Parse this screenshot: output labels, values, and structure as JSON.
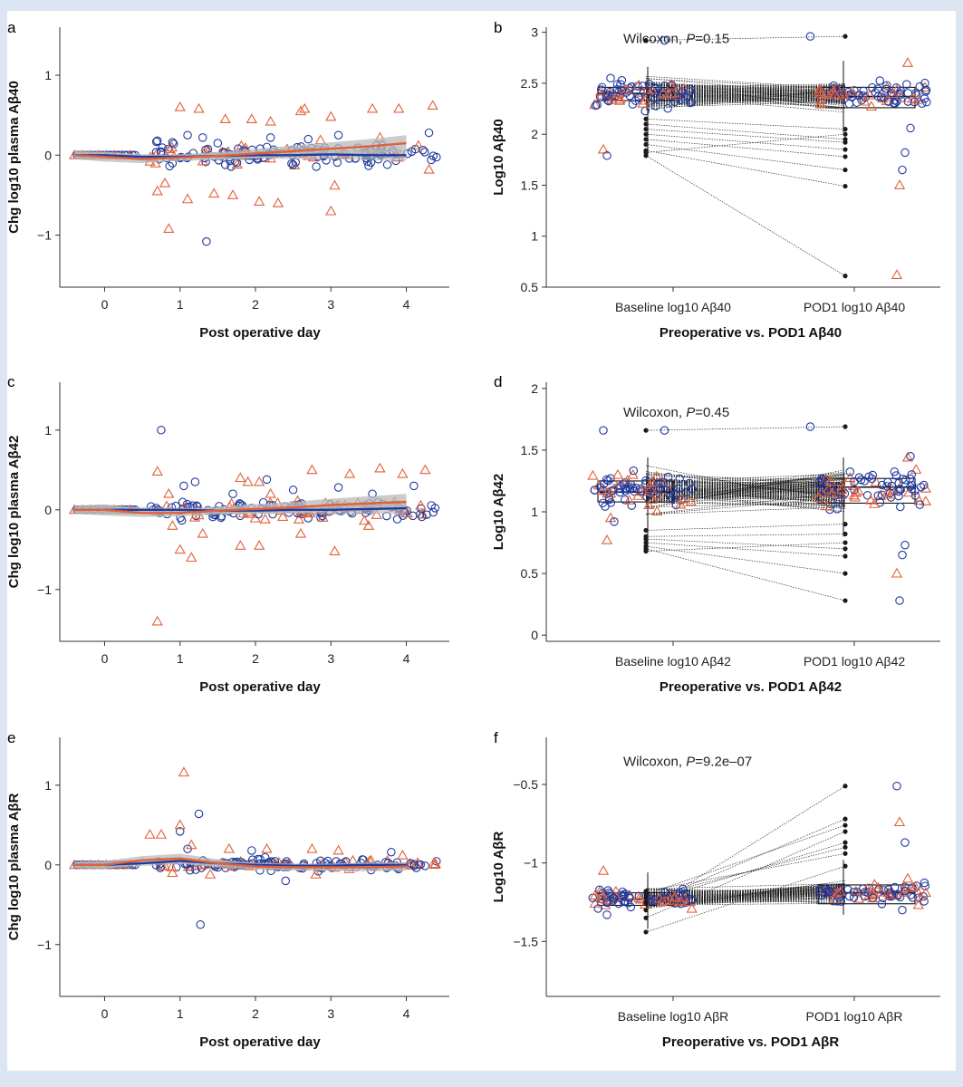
{
  "colors": {
    "orange": "#e0603a",
    "blue": "#1f3a9e",
    "smooth_band": "#b9b9b9",
    "black": "#1a1a1a"
  },
  "chart_data": [
    {
      "id": "a",
      "type": "scatter",
      "panel_label": "a",
      "xlabel": "Post operative day",
      "ylabel": "Chg log10 plasma Aβ40",
      "xlim": [
        -0.45,
        4.45
      ],
      "ylim": [
        -1.65,
        1.6
      ],
      "xticks": [
        0,
        1,
        2,
        3,
        4
      ],
      "yticks": [
        -1,
        0,
        1
      ],
      "smooth_orange": [
        [
          -0.4,
          0
        ],
        [
          0,
          -0.02
        ],
        [
          0.5,
          -0.05
        ],
        [
          1,
          -0.03
        ],
        [
          1.5,
          -0.01
        ],
        [
          2,
          0.02
        ],
        [
          2.5,
          0.05
        ],
        [
          3,
          0.08
        ],
        [
          3.5,
          0.11
        ],
        [
          4,
          0.15
        ]
      ],
      "smooth_blue": [
        [
          -0.4,
          0
        ],
        [
          0,
          0
        ],
        [
          0.5,
          -0.02
        ],
        [
          1,
          -0.02
        ],
        [
          1.5,
          -0.01
        ],
        [
          2,
          0
        ],
        [
          2.5,
          0
        ],
        [
          3,
          0.01
        ],
        [
          3.5,
          0
        ],
        [
          4,
          0
        ]
      ],
      "band_halfwidth": [
        0.05,
        0.06,
        0.05,
        0.04,
        0.05,
        0.06,
        0.07,
        0.08,
        0.09,
        0.1
      ],
      "outliers": [
        [
          0.7,
          0.18,
          "o"
        ],
        [
          0.9,
          0.16,
          "o"
        ],
        [
          1.1,
          0.25,
          "o"
        ],
        [
          1.3,
          0.22,
          "o"
        ],
        [
          1.5,
          0.15,
          "o"
        ],
        [
          2.2,
          0.22,
          "o"
        ],
        [
          2.7,
          0.2,
          "o"
        ],
        [
          3.1,
          0.25,
          "o"
        ],
        [
          3.6,
          0.12,
          "o"
        ],
        [
          4.3,
          0.28,
          "o"
        ],
        [
          1.35,
          -1.08,
          "o"
        ],
        [
          0.9,
          -0.1,
          "o"
        ],
        [
          1.6,
          -0.12,
          "o"
        ],
        [
          2.5,
          -0.12,
          "o"
        ],
        [
          1.0,
          0.6,
          "t"
        ],
        [
          1.25,
          0.58,
          "t"
        ],
        [
          1.6,
          0.45,
          "t"
        ],
        [
          1.95,
          0.45,
          "t"
        ],
        [
          2.2,
          0.42,
          "t"
        ],
        [
          2.6,
          0.55,
          "t"
        ],
        [
          2.65,
          0.58,
          "t"
        ],
        [
          3.0,
          0.48,
          "t"
        ],
        [
          3.55,
          0.58,
          "t"
        ],
        [
          3.9,
          0.58,
          "t"
        ],
        [
          3.65,
          0.22,
          "t"
        ],
        [
          4.35,
          0.62,
          "t"
        ],
        [
          0.85,
          -0.92,
          "t"
        ],
        [
          1.1,
          -0.55,
          "t"
        ],
        [
          1.7,
          -0.5,
          "t"
        ],
        [
          2.05,
          -0.58,
          "t"
        ],
        [
          2.3,
          -0.6,
          "t"
        ],
        [
          3.0,
          -0.7,
          "t"
        ],
        [
          3.05,
          -0.38,
          "t"
        ],
        [
          4.3,
          -0.18,
          "t"
        ],
        [
          0.7,
          -0.45,
          "t"
        ],
        [
          0.8,
          -0.35,
          "t"
        ],
        [
          1.45,
          -0.48,
          "t"
        ],
        [
          2.8,
          0.05,
          "t"
        ]
      ],
      "scatter_seed": 11,
      "scatter_spread": 0.12,
      "scatter_count": 150
    },
    {
      "id": "b",
      "type": "boxplot-paired",
      "panel_label": "b",
      "xlabel": "Preoperative vs. POD1 Aβ40",
      "ylabel": "Log10 Aβ40",
      "categories": [
        "Baseline log10 Aβ40",
        "POD1 log10 Aβ40"
      ],
      "ylim": [
        0.5,
        3.05
      ],
      "yticks": [
        0.5,
        1.0,
        1.5,
        2.0,
        2.5,
        3.0
      ],
      "annotation_prefix": "Wilcoxon, ",
      "annotation_p": "P",
      "annotation_value": "=0.15",
      "box_baseline": {
        "q1": 2.33,
        "median": 2.4,
        "q3": 2.46,
        "whisker_low": 1.79,
        "whisker_high": 2.66
      },
      "box_pod1": {
        "q1": 2.26,
        "median": 2.37,
        "q3": 2.46,
        "whisker_low": 2.02,
        "whisker_high": 2.72
      },
      "paired_extremes": [
        [
          2.92,
          2.96
        ],
        [
          1.79,
          0.61
        ],
        [
          1.84,
          1.49
        ],
        [
          1.9,
          1.65
        ],
        [
          1.95,
          1.78
        ],
        [
          2.0,
          1.85
        ],
        [
          2.05,
          1.92
        ],
        [
          2.1,
          1.95
        ],
        [
          1.82,
          2.0
        ],
        [
          2.15,
          2.05
        ]
      ],
      "paired_count": 120,
      "paired_center": 2.39,
      "paired_spread": 0.12,
      "scatter_seed": 21,
      "outliers_left": [
        [
          1.85,
          "t"
        ],
        [
          1.79,
          "o"
        ],
        [
          2.55,
          "o"
        ]
      ],
      "outliers_right": [
        [
          0.62,
          "t"
        ],
        [
          1.5,
          "t"
        ],
        [
          1.65,
          "o"
        ],
        [
          1.82,
          "o"
        ],
        [
          2.7,
          "t"
        ],
        [
          2.06,
          "o"
        ]
      ],
      "top_points": [
        [
          2.92,
          "o",
          0.3
        ],
        [
          2.96,
          "o",
          0.67
        ]
      ]
    },
    {
      "id": "c",
      "type": "scatter",
      "panel_label": "c",
      "xlabel": "Post operative day",
      "ylabel": "Chg log10 plasma Aβ42",
      "xlim": [
        -0.45,
        4.45
      ],
      "ylim": [
        -1.65,
        1.6
      ],
      "xticks": [
        0,
        1,
        2,
        3,
        4
      ],
      "yticks": [
        -1,
        0,
        1
      ],
      "smooth_orange": [
        [
          -0.4,
          0
        ],
        [
          0,
          0
        ],
        [
          0.5,
          -0.04
        ],
        [
          1,
          -0.04
        ],
        [
          1.5,
          -0.01
        ],
        [
          2,
          0.01
        ],
        [
          2.5,
          0.03
        ],
        [
          3,
          0.06
        ],
        [
          3.5,
          0.08
        ],
        [
          4,
          0.1
        ]
      ],
      "smooth_blue": [
        [
          -0.4,
          0
        ],
        [
          0,
          0
        ],
        [
          0.5,
          0
        ],
        [
          1,
          0
        ],
        [
          1.5,
          -0.01
        ],
        [
          2,
          -0.01
        ],
        [
          2.5,
          0
        ],
        [
          3,
          0
        ],
        [
          3.5,
          0.01
        ],
        [
          4,
          0.02
        ]
      ],
      "band_halfwidth": [
        0.05,
        0.07,
        0.05,
        0.04,
        0.05,
        0.06,
        0.07,
        0.08,
        0.09,
        0.1
      ],
      "outliers": [
        [
          0.75,
          1.0,
          "o"
        ],
        [
          1.05,
          0.3,
          "o"
        ],
        [
          1.2,
          0.35,
          "o"
        ],
        [
          1.7,
          0.2,
          "o"
        ],
        [
          2.15,
          0.38,
          "o"
        ],
        [
          2.5,
          0.25,
          "o"
        ],
        [
          3.1,
          0.28,
          "o"
        ],
        [
          3.55,
          0.2,
          "o"
        ],
        [
          4.1,
          0.3,
          "o"
        ],
        [
          1.55,
          -0.08,
          "o"
        ],
        [
          0.7,
          -1.4,
          "t"
        ],
        [
          0.7,
          0.48,
          "t"
        ],
        [
          0.85,
          0.2,
          "t"
        ],
        [
          1.8,
          0.4,
          "t"
        ],
        [
          1.9,
          0.35,
          "t"
        ],
        [
          2.05,
          0.35,
          "t"
        ],
        [
          2.2,
          0.2,
          "t"
        ],
        [
          2.75,
          0.5,
          "t"
        ],
        [
          3.25,
          0.45,
          "t"
        ],
        [
          3.65,
          0.52,
          "t"
        ],
        [
          3.95,
          0.45,
          "t"
        ],
        [
          4.25,
          0.5,
          "t"
        ],
        [
          1.0,
          -0.5,
          "t"
        ],
        [
          1.15,
          -0.6,
          "t"
        ],
        [
          1.3,
          -0.3,
          "t"
        ],
        [
          1.8,
          -0.45,
          "t"
        ],
        [
          2.05,
          -0.45,
          "t"
        ],
        [
          2.6,
          -0.3,
          "t"
        ],
        [
          3.05,
          -0.52,
          "t"
        ],
        [
          3.5,
          -0.2,
          "t"
        ],
        [
          0.9,
          -0.2,
          "t"
        ]
      ],
      "scatter_seed": 31,
      "scatter_spread": 0.11,
      "scatter_count": 150
    },
    {
      "id": "d",
      "type": "boxplot-paired",
      "panel_label": "d",
      "xlabel": "Preoperative vs. POD1 Aβ42",
      "ylabel": "Log10 Aβ42",
      "categories": [
        "Baseline log10 Aβ42",
        "POD1 log10 Aβ42"
      ],
      "ylim": [
        -0.05,
        2.05
      ],
      "yticks": [
        0.0,
        0.5,
        1.0,
        1.5,
        2.0
      ],
      "annotation_prefix": "Wilcoxon, ",
      "annotation_p": "P",
      "annotation_value": "=0.45",
      "box_baseline": {
        "q1": 1.08,
        "median": 1.16,
        "q3": 1.25,
        "whisker_low": 0.68,
        "whisker_high": 1.44
      },
      "box_pod1": {
        "q1": 1.07,
        "median": 1.2,
        "q3": 1.27,
        "whisker_low": 0.8,
        "whisker_high": 1.44
      },
      "paired_extremes": [
        [
          1.66,
          1.69
        ],
        [
          0.7,
          0.28
        ],
        [
          0.72,
          0.5
        ],
        [
          0.75,
          0.64
        ],
        [
          0.78,
          0.7
        ],
        [
          0.68,
          0.75
        ],
        [
          0.8,
          0.82
        ],
        [
          0.85,
          0.9
        ]
      ],
      "paired_count": 120,
      "paired_center": 1.17,
      "paired_spread": 0.14,
      "scatter_seed": 41,
      "outliers_left": [
        [
          1.66,
          "o"
        ],
        [
          0.77,
          "t"
        ],
        [
          0.95,
          "t"
        ],
        [
          0.92,
          "o"
        ],
        [
          1.3,
          "t"
        ]
      ],
      "outliers_right": [
        [
          0.5,
          "t"
        ],
        [
          0.28,
          "o"
        ],
        [
          0.65,
          "o"
        ],
        [
          0.73,
          "o"
        ],
        [
          1.44,
          "t"
        ],
        [
          1.45,
          "o"
        ]
      ],
      "top_points": [
        [
          1.66,
          "o",
          0.3
        ],
        [
          1.69,
          "o",
          0.67
        ]
      ]
    },
    {
      "id": "e",
      "type": "scatter",
      "panel_label": "e",
      "xlabel": "Post operative day",
      "ylabel": "Chg log10 plasma AβR",
      "xlim": [
        -0.45,
        4.45
      ],
      "ylim": [
        -1.65,
        1.6
      ],
      "xticks": [
        0,
        1,
        2,
        3,
        4
      ],
      "yticks": [
        -1,
        0,
        1
      ],
      "smooth_orange": [
        [
          -0.4,
          0
        ],
        [
          0,
          0
        ],
        [
          0.5,
          0.06
        ],
        [
          1,
          0.08
        ],
        [
          1.5,
          0.02
        ],
        [
          2,
          -0.02
        ],
        [
          2.5,
          -0.03
        ],
        [
          3,
          -0.03
        ],
        [
          3.5,
          -0.03
        ],
        [
          4,
          -0.02
        ]
      ],
      "smooth_blue": [
        [
          -0.4,
          0
        ],
        [
          0,
          0
        ],
        [
          0.5,
          0.02
        ],
        [
          1,
          0.05
        ],
        [
          1.5,
          0.02
        ],
        [
          2,
          0
        ],
        [
          2.5,
          -0.01
        ],
        [
          3,
          -0.01
        ],
        [
          3.5,
          0
        ],
        [
          4,
          0
        ]
      ],
      "band_halfwidth": [
        0.04,
        0.05,
        0.05,
        0.06,
        0.05,
        0.04,
        0.04,
        0.04,
        0.05,
        0.05
      ],
      "outliers": [
        [
          1.25,
          0.64,
          "o"
        ],
        [
          1.27,
          -0.75,
          "o"
        ],
        [
          1.0,
          0.42,
          "o"
        ],
        [
          1.1,
          0.2,
          "o"
        ],
        [
          1.95,
          0.18,
          "o"
        ],
        [
          3.8,
          0.16,
          "o"
        ],
        [
          2.4,
          -0.2,
          "o"
        ],
        [
          1.05,
          1.16,
          "t"
        ],
        [
          1.0,
          0.5,
          "t"
        ],
        [
          0.6,
          0.38,
          "t"
        ],
        [
          0.75,
          0.38,
          "t"
        ],
        [
          1.15,
          0.25,
          "t"
        ],
        [
          1.65,
          0.2,
          "t"
        ],
        [
          2.15,
          0.2,
          "t"
        ],
        [
          2.75,
          0.2,
          "t"
        ],
        [
          3.1,
          0.18,
          "t"
        ],
        [
          3.95,
          0.12,
          "t"
        ],
        [
          0.9,
          -0.1,
          "t"
        ],
        [
          1.4,
          -0.12,
          "t"
        ],
        [
          2.8,
          -0.12,
          "t"
        ]
      ],
      "scatter_seed": 51,
      "scatter_spread": 0.06,
      "scatter_count": 150
    },
    {
      "id": "f",
      "type": "boxplot-paired",
      "panel_label": "f",
      "xlabel": "Preoperative vs. POD1 AβR",
      "ylabel": "Log10 AβR",
      "categories": [
        "Baseline log10 AβR",
        "POD1 log10 AβR"
      ],
      "ylim": [
        -1.85,
        -0.2
      ],
      "yticks": [
        -1.5,
        -1.0,
        -0.5
      ],
      "annotation_prefix": "Wilcoxon, ",
      "annotation_p": "P",
      "annotation_value": "=9.2e–07",
      "box_baseline": {
        "q1": -1.27,
        "median": -1.23,
        "q3": -1.19,
        "whisker_low": -1.42,
        "whisker_high": -1.06
      },
      "box_pod1": {
        "q1": -1.26,
        "median": -1.19,
        "q3": -1.14,
        "whisker_low": -1.33,
        "whisker_high": -0.98
      },
      "paired_extremes": [
        [
          -1.3,
          -0.51
        ],
        [
          -1.26,
          -0.72
        ],
        [
          -1.2,
          -0.76
        ],
        [
          -1.35,
          -0.8
        ],
        [
          -1.25,
          -0.87
        ],
        [
          -1.22,
          -0.9
        ],
        [
          -1.18,
          -0.94
        ],
        [
          -1.44,
          -1.02
        ]
      ],
      "paired_count": 120,
      "paired_center": -1.23,
      "paired_spread": 0.06,
      "pod1_shift": 0.04,
      "scatter_seed": 61,
      "outliers_left": [
        [
          -1.05,
          "t"
        ],
        [
          -1.33,
          "o"
        ],
        [
          -1.2,
          "o"
        ]
      ],
      "outliers_right": [
        [
          -0.51,
          "o"
        ],
        [
          -0.74,
          "t"
        ],
        [
          -1.3,
          "o"
        ],
        [
          -0.87,
          "o"
        ],
        [
          -1.1,
          "t"
        ]
      ],
      "top_points": []
    }
  ]
}
